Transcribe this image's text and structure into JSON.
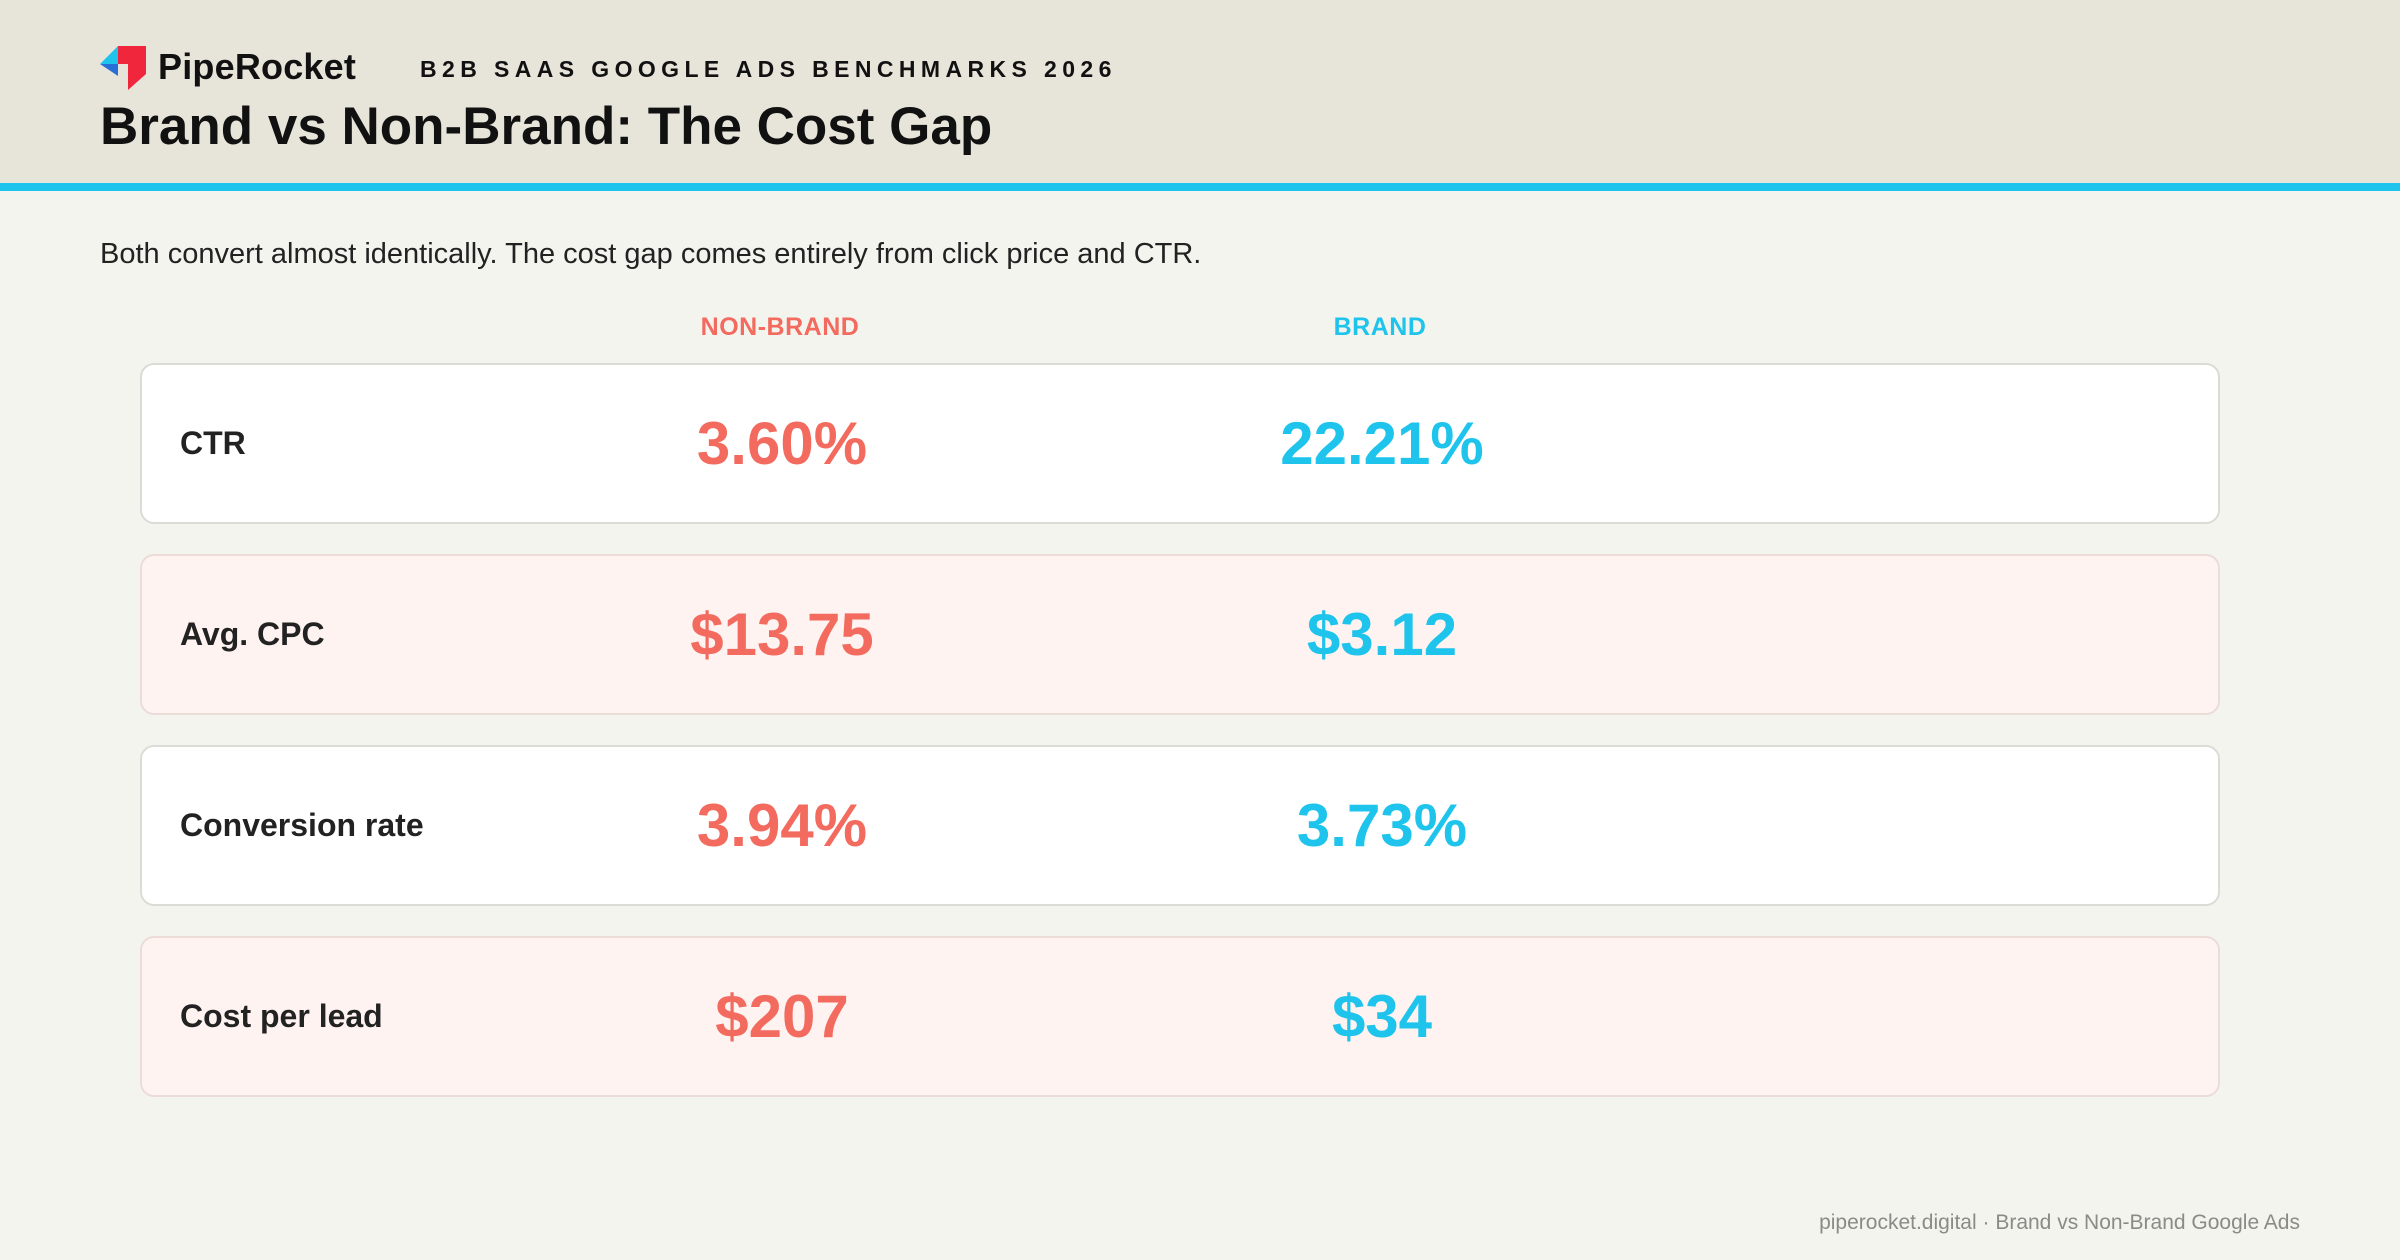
{
  "header": {
    "brand_name": "PipeRocket",
    "kicker": "B2B SAAS GOOGLE ADS BENCHMARKS 2026",
    "title": "Brand vs Non-Brand: The Cost Gap"
  },
  "subtitle": "Both convert almost identically. The cost gap comes entirely from click price and CTR.",
  "colors": {
    "non_brand": "#f26b5e",
    "brand": "#1ec4eb",
    "header_bg": "#e7e5da",
    "accent_rule": "#1ec4eb"
  },
  "chart_data": {
    "type": "table",
    "columns": [
      "NON-BRAND",
      "BRAND"
    ],
    "rows": [
      {
        "metric": "CTR",
        "non_brand": "3.60%",
        "brand": "22.21%"
      },
      {
        "metric": "Avg. CPC",
        "non_brand": "$13.75",
        "brand": "$3.12"
      },
      {
        "metric": "Conversion rate",
        "non_brand": "3.94%",
        "brand": "3.73%"
      },
      {
        "metric": "Cost per lead",
        "non_brand": "$207",
        "brand": "$34"
      }
    ]
  },
  "footer": {
    "text": "piperocket.digital · Brand vs Non-Brand Google Ads"
  }
}
